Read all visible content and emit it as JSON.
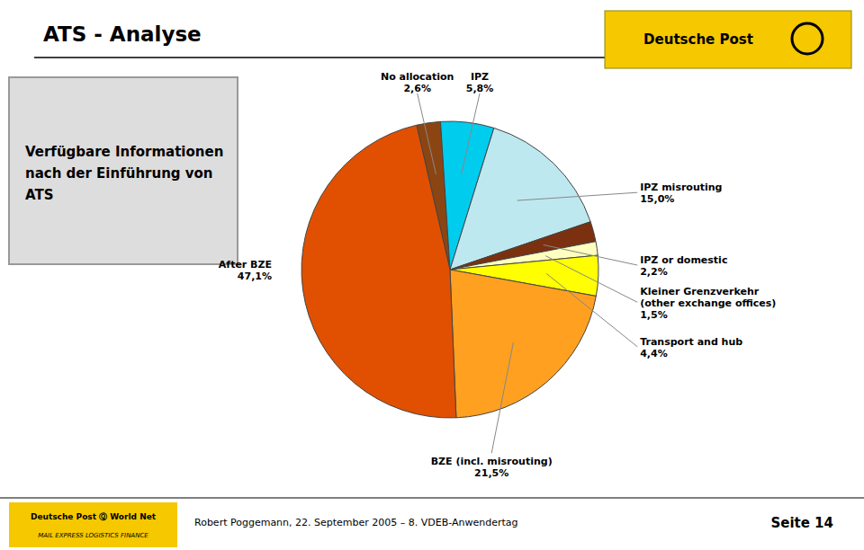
{
  "chart_data": {
    "type": "pie",
    "title": "ATS - Analyse",
    "subtitle": "Verfügbare Informationen\nnach der Einführung von\nATS",
    "categories": [
      "No allocation\n2,6%",
      "IPZ\n5,8%",
      "IPZ misrouting\n15,0%",
      "IPZ or domestic\n2,2%",
      "Kleiner Grenzverkehr\n(other exchange offices)\n1,5%",
      "Transport and hub\n4,4%",
      "BZE (incl. misrouting)\n21,5%",
      "After BZE\n47,1%"
    ],
    "values": [
      2.6,
      5.8,
      15.0,
      2.2,
      1.5,
      4.4,
      21.5,
      47.1
    ],
    "colors": [
      "#8B4513",
      "#00CCEE",
      "#BEE8F0",
      "#7B3010",
      "#FFFFC0",
      "#FFFF00",
      "#FFA020",
      "#E05000"
    ],
    "annotations": [
      "Deutsche Post",
      "Deutsche Post  Ⓠ  World Net",
      "MAIL EXPRESS LOGISTICS FINANCE",
      "Robert Poggemann, 22. September 2005 – 8. VDEB-Anwendertag",
      "Seite 14"
    ]
  }
}
